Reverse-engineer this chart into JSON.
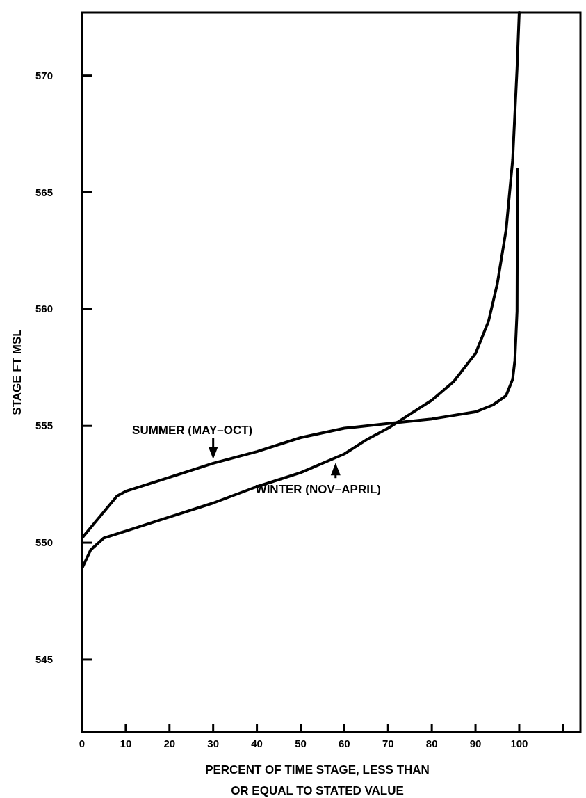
{
  "chart_data": {
    "type": "line",
    "xlabel": "PERCENT OF TIME STAGE,    LESS THAN\nOR EQUAL TO STATED VALUE",
    "ylabel": "STAGE    FT MSL",
    "xlim": [
      0,
      114
    ],
    "ylim": [
      541.9,
      572.7
    ],
    "xticks": [
      0,
      10,
      20,
      30,
      40,
      50,
      60,
      70,
      80,
      90,
      100,
      {
        "value": 110,
        "label": null
      }
    ],
    "yticks": [
      545,
      550,
      555,
      560,
      565,
      570
    ],
    "series": [
      {
        "color": "#000000",
        "x": [
          0,
          8,
          10,
          20,
          30,
          40,
          50,
          60,
          70,
          80,
          90,
          94,
          97,
          98.5,
          99,
          99.5,
          99.6
        ],
        "values": [
          550.2,
          552.0,
          552.2,
          552.8,
          553.4,
          553.9,
          554.5,
          554.9,
          555.1,
          555.3,
          555.6,
          555.9,
          556.3,
          557.0,
          557.8,
          559.9,
          566.0
        ]
      },
      {
        "color": "#000000",
        "x": [
          0,
          2,
          5,
          10,
          20,
          30,
          40,
          50,
          60,
          65,
          70,
          75,
          80,
          85,
          90,
          93,
          95,
          97,
          98.5,
          99.5,
          100
        ],
        "values": [
          548.9,
          549.7,
          550.2,
          550.5,
          551.1,
          551.7,
          552.4,
          553.0,
          553.8,
          554.4,
          554.9,
          555.5,
          556.1,
          556.9,
          558.1,
          559.5,
          561.1,
          563.4,
          566.4,
          570.3,
          572.7
        ]
      }
    ],
    "annotations": [
      {
        "text": "SUMMER (MAY–OCT)",
        "x": 30,
        "y": 553.4
      },
      {
        "text": "WINTER (NOV–APRIL)",
        "x": 58,
        "y": 553.6
      }
    ]
  }
}
